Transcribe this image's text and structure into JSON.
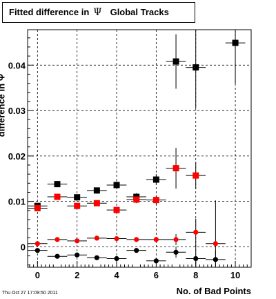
{
  "title": {
    "prefix": "Fitted difference in",
    "symbol": "Ψ",
    "suffix": "Global Tracks"
  },
  "timestamp": "Thu Oct 27 17:09:50 2011",
  "chart_data": {
    "type": "scatter",
    "title": "Fitted difference in Ψ  Global Tracks",
    "xlabel": "No. of Bad Points",
    "ylabel": "difference in Ψ",
    "xlim": [
      -0.5,
      10.8
    ],
    "ylim": [
      -0.0045,
      0.0478
    ],
    "x_ticks": [
      0,
      2,
      4,
      6,
      8,
      10
    ],
    "y_ticks": [
      0,
      0.01,
      0.02,
      0.03,
      0.04
    ],
    "y_tick_labels": [
      "0",
      "0.01",
      "0.02",
      "0.03",
      "0.04"
    ],
    "grid": true,
    "series": [
      {
        "marker": "square",
        "color": "#000000",
        "points": [
          {
            "x": 0,
            "y": 0.009,
            "yerr": 0.0006
          },
          {
            "x": 1,
            "y": 0.0138,
            "yerr": 0.0005
          },
          {
            "x": 2,
            "y": 0.0109,
            "yerr": 0.0005
          },
          {
            "x": 3,
            "y": 0.0124,
            "yerr": 0.0006
          },
          {
            "x": 4,
            "y": 0.0136,
            "yerr": 0.0008
          },
          {
            "x": 5,
            "y": 0.011,
            "yerr": 0.0008
          },
          {
            "x": 6,
            "y": 0.0148,
            "yerr": 0.0012
          },
          {
            "x": 7,
            "y": 0.0408,
            "yerr": 0.006
          },
          {
            "x": 8,
            "y": 0.0395,
            "yerr": 0.009
          },
          {
            "x": 10,
            "y": 0.0449,
            "yerr": 0.009
          }
        ]
      },
      {
        "marker": "square",
        "color": "#ff0000",
        "points": [
          {
            "x": 0,
            "y": 0.0085,
            "yerr": 0.0005
          },
          {
            "x": 1,
            "y": 0.011,
            "yerr": 0.0005
          },
          {
            "x": 2,
            "y": 0.009,
            "yerr": 0.0005
          },
          {
            "x": 3,
            "y": 0.0096,
            "yerr": 0.0005
          },
          {
            "x": 4,
            "y": 0.0081,
            "yerr": 0.0007
          },
          {
            "x": 5,
            "y": 0.0104,
            "yerr": 0.0008
          },
          {
            "x": 6,
            "y": 0.0103,
            "yerr": 0.001
          },
          {
            "x": 7,
            "y": 0.0173,
            "yerr": 0.0045
          },
          {
            "x": 8,
            "y": 0.0157,
            "yerr": 0.003
          }
        ]
      },
      {
        "marker": "circle",
        "color": "#ff0000",
        "points": [
          {
            "x": 0,
            "y": 0.0007,
            "yerr": 0.0003
          },
          {
            "x": 1,
            "y": 0.0016,
            "yerr": 0.0003
          },
          {
            "x": 2,
            "y": 0.0013,
            "yerr": 0.0003
          },
          {
            "x": 3,
            "y": 0.0019,
            "yerr": 0.0003
          },
          {
            "x": 4,
            "y": 0.0018,
            "yerr": 0.0004
          },
          {
            "x": 5,
            "y": 0.0016,
            "yerr": 0.0004
          },
          {
            "x": 6,
            "y": 0.0016,
            "yerr": 0.0006
          },
          {
            "x": 7,
            "y": 0.0016,
            "yerr": 0.0012
          },
          {
            "x": 8,
            "y": 0.0032,
            "yerr": 0.003
          },
          {
            "x": 9,
            "y": 0.0007,
            "yerr": 0.0095
          }
        ]
      },
      {
        "marker": "circle",
        "color": "#000000",
        "points": [
          {
            "x": 0,
            "y": -0.0008,
            "yerr": 0.0003
          },
          {
            "x": 1,
            "y": -0.0021,
            "yerr": 0.0003
          },
          {
            "x": 2,
            "y": -0.0018,
            "yerr": 0.0003
          },
          {
            "x": 3,
            "y": -0.0024,
            "yerr": 0.0003
          },
          {
            "x": 4,
            "y": -0.0026,
            "yerr": 0.0004
          },
          {
            "x": 5,
            "y": -0.0008,
            "yerr": 0.0004
          },
          {
            "x": 6,
            "y": -0.0031,
            "yerr": 0.0006
          },
          {
            "x": 7,
            "y": -0.0012,
            "yerr": 0.0012
          },
          {
            "x": 8,
            "y": -0.0026,
            "yerr": 0.003
          },
          {
            "x": 9,
            "y": -0.0028,
            "yerr": 0.002
          }
        ]
      }
    ]
  }
}
